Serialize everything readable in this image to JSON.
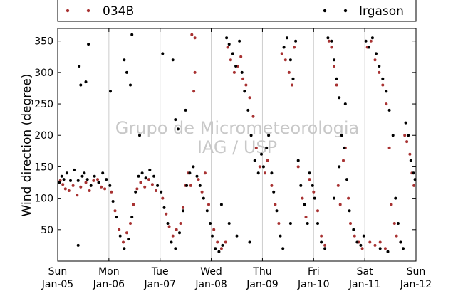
{
  "chart_data": {
    "type": "scatter",
    "ylabel": "Wind direction (degree)",
    "xlabel": "",
    "ylim": [
      0,
      370
    ],
    "xlim": [
      0,
      7
    ],
    "yticks": [
      50,
      100,
      150,
      200,
      250,
      300,
      350
    ],
    "xticks": [
      {
        "x": 0,
        "day": "Sun",
        "date": "Jan-05"
      },
      {
        "x": 1,
        "day": "Mon",
        "date": "Jan-06"
      },
      {
        "x": 2,
        "day": "Tue",
        "date": "Jan-07"
      },
      {
        "x": 3,
        "day": "Wed",
        "date": "Jan-08"
      },
      {
        "x": 4,
        "day": "Thu",
        "date": "Jan-09"
      },
      {
        "x": 5,
        "day": "Fri",
        "date": "Jan-10"
      },
      {
        "x": 6,
        "day": "Sat",
        "date": "Jan-11"
      },
      {
        "x": 7,
        "day": "Sun",
        "date": "Jan-12"
      }
    ],
    "grid": "vertical",
    "legend_placement": "top",
    "watermark": [
      "Grupo de Micrometeorologia",
      "IAG / USP"
    ],
    "series": [
      {
        "name": "034B",
        "color": "#a83232",
        "points": [
          [
            0.05,
            128
          ],
          [
            0.1,
            122
          ],
          [
            0.15,
            115
          ],
          [
            0.22,
            112
          ],
          [
            0.3,
            120
          ],
          [
            0.38,
            105
          ],
          [
            0.45,
            118
          ],
          [
            0.55,
            125
          ],
          [
            0.62,
            112
          ],
          [
            0.7,
            128
          ],
          [
            0.78,
            130
          ],
          [
            0.85,
            118
          ],
          [
            0.92,
            115
          ],
          [
            1.05,
            110
          ],
          [
            1.12,
            80
          ],
          [
            1.2,
            50
          ],
          [
            1.28,
            30
          ],
          [
            1.35,
            45
          ],
          [
            1.42,
            60
          ],
          [
            1.48,
            90
          ],
          [
            1.55,
            115
          ],
          [
            1.62,
            125
          ],
          [
            1.7,
            118
          ],
          [
            1.78,
            130
          ],
          [
            1.85,
            122
          ],
          [
            1.92,
            112
          ],
          [
            2.05,
            100
          ],
          [
            2.12,
            75
          ],
          [
            2.18,
            55
          ],
          [
            2.25,
            40
          ],
          [
            2.32,
            50
          ],
          [
            2.4,
            60
          ],
          [
            2.45,
            85
          ],
          [
            2.5,
            120
          ],
          [
            2.55,
            140
          ],
          [
            2.6,
            120
          ],
          [
            2.62,
            360
          ],
          [
            2.68,
            355
          ],
          [
            2.68,
            300
          ],
          [
            2.66,
            270
          ],
          [
            2.75,
            130
          ],
          [
            2.82,
            110
          ],
          [
            2.88,
            140
          ],
          [
            2.95,
            90
          ],
          [
            3.05,
            50
          ],
          [
            3.12,
            30
          ],
          [
            3.2,
            20
          ],
          [
            3.28,
            30
          ],
          [
            3.32,
            340
          ],
          [
            3.38,
            320
          ],
          [
            3.45,
            300
          ],
          [
            3.52,
            310
          ],
          [
            3.58,
            325
          ],
          [
            3.62,
            290
          ],
          [
            3.68,
            280
          ],
          [
            3.75,
            260
          ],
          [
            3.82,
            230
          ],
          [
            3.88,
            180
          ],
          [
            3.95,
            150
          ],
          [
            4.05,
            140
          ],
          [
            4.1,
            160
          ],
          [
            4.18,
            120
          ],
          [
            4.25,
            90
          ],
          [
            4.32,
            60
          ],
          [
            4.38,
            330
          ],
          [
            4.45,
            320
          ],
          [
            4.52,
            300
          ],
          [
            4.58,
            280
          ],
          [
            4.62,
            340
          ],
          [
            4.7,
            150
          ],
          [
            4.78,
            100
          ],
          [
            4.85,
            70
          ],
          [
            4.92,
            130
          ],
          [
            5.0,
            110
          ],
          [
            5.08,
            80
          ],
          [
            5.15,
            40
          ],
          [
            5.22,
            25
          ],
          [
            5.3,
            350
          ],
          [
            5.35,
            340
          ],
          [
            5.4,
            310
          ],
          [
            5.45,
            280
          ],
          [
            5.48,
            120
          ],
          [
            5.52,
            90
          ],
          [
            5.58,
            160
          ],
          [
            5.62,
            180
          ],
          [
            5.68,
            100
          ],
          [
            5.72,
            60
          ],
          [
            5.8,
            40
          ],
          [
            5.88,
            30
          ],
          [
            5.95,
            20
          ],
          [
            6.05,
            340
          ],
          [
            6.12,
            350
          ],
          [
            6.2,
            320
          ],
          [
            6.28,
            300
          ],
          [
            6.35,
            280
          ],
          [
            6.42,
            250
          ],
          [
            6.48,
            180
          ],
          [
            6.52,
            90
          ],
          [
            6.58,
            60
          ],
          [
            6.62,
            40
          ],
          [
            6.7,
            30
          ],
          [
            6.78,
            200
          ],
          [
            6.82,
            190
          ],
          [
            6.88,
            170
          ],
          [
            6.92,
            140
          ],
          [
            6.96,
            120
          ],
          [
            6.4,
            20
          ],
          [
            6.3,
            30
          ],
          [
            6.2,
            25
          ],
          [
            6.1,
            30
          ]
        ]
      },
      {
        "name": "Irgason",
        "color": "#000000",
        "points": [
          [
            0.03,
            125
          ],
          [
            0.08,
            135
          ],
          [
            0.12,
            130
          ],
          [
            0.18,
            140
          ],
          [
            0.25,
            128
          ],
          [
            0.32,
            145
          ],
          [
            0.4,
            128
          ],
          [
            0.48,
            135
          ],
          [
            0.52,
            140
          ],
          [
            0.58,
            130
          ],
          [
            0.65,
            120
          ],
          [
            0.72,
            135
          ],
          [
            0.8,
            125
          ],
          [
            0.88,
            140
          ],
          [
            0.95,
            130
          ],
          [
            0.4,
            25
          ],
          [
            0.45,
            280
          ],
          [
            0.6,
            345
          ],
          [
            0.42,
            310
          ],
          [
            0.55,
            285
          ],
          [
            1.02,
            120
          ],
          [
            1.08,
            95
          ],
          [
            1.15,
            70
          ],
          [
            1.22,
            40
          ],
          [
            1.3,
            20
          ],
          [
            1.38,
            35
          ],
          [
            1.45,
            70
          ],
          [
            1.52,
            110
          ],
          [
            1.58,
            135
          ],
          [
            1.65,
            140
          ],
          [
            1.72,
            132
          ],
          [
            1.8,
            145
          ],
          [
            1.88,
            135
          ],
          [
            1.95,
            120
          ],
          [
            1.03,
            270
          ],
          [
            1.3,
            320
          ],
          [
            1.35,
            300
          ],
          [
            1.42,
            280
          ],
          [
            1.45,
            360
          ],
          [
            1.6,
            200
          ],
          [
            2.02,
            110
          ],
          [
            2.08,
            85
          ],
          [
            2.15,
            60
          ],
          [
            2.22,
            30
          ],
          [
            2.3,
            20
          ],
          [
            2.38,
            45
          ],
          [
            2.45,
            80
          ],
          [
            2.52,
            120
          ],
          [
            2.58,
            140
          ],
          [
            2.65,
            150
          ],
          [
            2.72,
            135
          ],
          [
            2.78,
            120
          ],
          [
            2.85,
            100
          ],
          [
            2.92,
            80
          ],
          [
            2.98,
            60
          ],
          [
            2.05,
            330
          ],
          [
            2.25,
            320
          ],
          [
            2.3,
            225
          ],
          [
            2.35,
            210
          ],
          [
            2.5,
            240
          ],
          [
            3.02,
            40
          ],
          [
            3.08,
            20
          ],
          [
            3.15,
            15
          ],
          [
            3.22,
            25
          ],
          [
            3.3,
            355
          ],
          [
            3.35,
            345
          ],
          [
            3.42,
            330
          ],
          [
            3.48,
            310
          ],
          [
            3.55,
            350
          ],
          [
            3.6,
            300
          ],
          [
            3.65,
            270
          ],
          [
            3.72,
            240
          ],
          [
            3.78,
            200
          ],
          [
            3.85,
            160
          ],
          [
            3.92,
            140
          ],
          [
            3.98,
            170
          ],
          [
            3.2,
            90
          ],
          [
            3.35,
            60
          ],
          [
            3.5,
            40
          ],
          [
            3.75,
            30
          ],
          [
            4.02,
            150
          ],
          [
            4.08,
            180
          ],
          [
            4.12,
            200
          ],
          [
            4.18,
            140
          ],
          [
            4.22,
            110
          ],
          [
            4.28,
            80
          ],
          [
            4.35,
            40
          ],
          [
            4.42,
            340
          ],
          [
            4.48,
            355
          ],
          [
            4.55,
            320
          ],
          [
            4.6,
            290
          ],
          [
            4.65,
            350
          ],
          [
            4.7,
            160
          ],
          [
            4.75,
            120
          ],
          [
            4.82,
            90
          ],
          [
            4.88,
            60
          ],
          [
            4.92,
            140
          ],
          [
            4.98,
            120
          ],
          [
            4.4,
            20
          ],
          [
            4.55,
            60
          ],
          [
            5.02,
            100
          ],
          [
            5.08,
            60
          ],
          [
            5.15,
            30
          ],
          [
            5.22,
            20
          ],
          [
            5.28,
            355
          ],
          [
            5.35,
            350
          ],
          [
            5.4,
            320
          ],
          [
            5.45,
            290
          ],
          [
            5.5,
            260
          ],
          [
            5.55,
            200
          ],
          [
            5.6,
            180
          ],
          [
            5.65,
            130
          ],
          [
            5.7,
            80
          ],
          [
            5.78,
            50
          ],
          [
            5.85,
            30
          ],
          [
            5.92,
            25
          ],
          [
            5.98,
            40
          ],
          [
            5.5,
            150
          ],
          [
            5.62,
            250
          ],
          [
            5.4,
            100
          ],
          [
            6.02,
            350
          ],
          [
            6.08,
            340
          ],
          [
            6.15,
            355
          ],
          [
            6.22,
            330
          ],
          [
            6.28,
            310
          ],
          [
            6.35,
            290
          ],
          [
            6.42,
            270
          ],
          [
            6.48,
            240
          ],
          [
            6.55,
            200
          ],
          [
            6.6,
            100
          ],
          [
            6.65,
            60
          ],
          [
            6.7,
            30
          ],
          [
            6.75,
            20
          ],
          [
            6.8,
            220
          ],
          [
            6.85,
            200
          ],
          [
            6.9,
            160
          ],
          [
            6.95,
            140
          ],
          [
            6.98,
            130
          ],
          [
            6.3,
            20
          ],
          [
            6.45,
            15
          ]
        ]
      }
    ]
  }
}
